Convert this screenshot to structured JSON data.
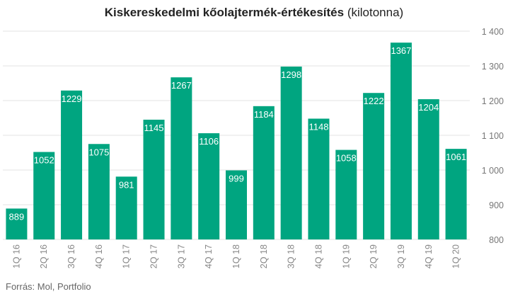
{
  "chart_data": {
    "type": "bar",
    "title": "Kiskereskedelmi kőolajtermék-értékesítés",
    "title_unit": "(kilotonna)",
    "categories": [
      "1Q 16",
      "2Q 16",
      "3Q 16",
      "4Q 16",
      "1Q 17",
      "2Q 17",
      "3Q 17",
      "4Q 17",
      "1Q 18",
      "2Q 18",
      "3Q 18",
      "4Q 18",
      "1Q 19",
      "2Q 19",
      "3Q 19",
      "4Q 19",
      "1Q 20"
    ],
    "values": [
      889,
      1052,
      1229,
      1075,
      981,
      1145,
      1267,
      1106,
      999,
      1184,
      1298,
      1148,
      1058,
      1222,
      1367,
      1204,
      1061
    ],
    "value_labels": [
      "889",
      "1052",
      "1229",
      "1075",
      "981",
      "1145",
      "1267",
      "1106",
      "999",
      "1184",
      "1298",
      "1148",
      "1058",
      "1222",
      "1367",
      "1204",
      "1061"
    ],
    "ylim": [
      800,
      1400
    ],
    "yticks": [
      800,
      900,
      1000,
      1100,
      1200,
      1300,
      1400
    ],
    "ytick_labels": [
      "800",
      "900",
      "1 000",
      "1 100",
      "1 200",
      "1 300",
      "1 400"
    ],
    "y_axis_side": "right",
    "grid": true,
    "bar_color": "#00a580",
    "grid_color": "#e3e3e3",
    "xlabel": "",
    "ylabel": ""
  },
  "source": "Forrás: Mol, Portfolio"
}
